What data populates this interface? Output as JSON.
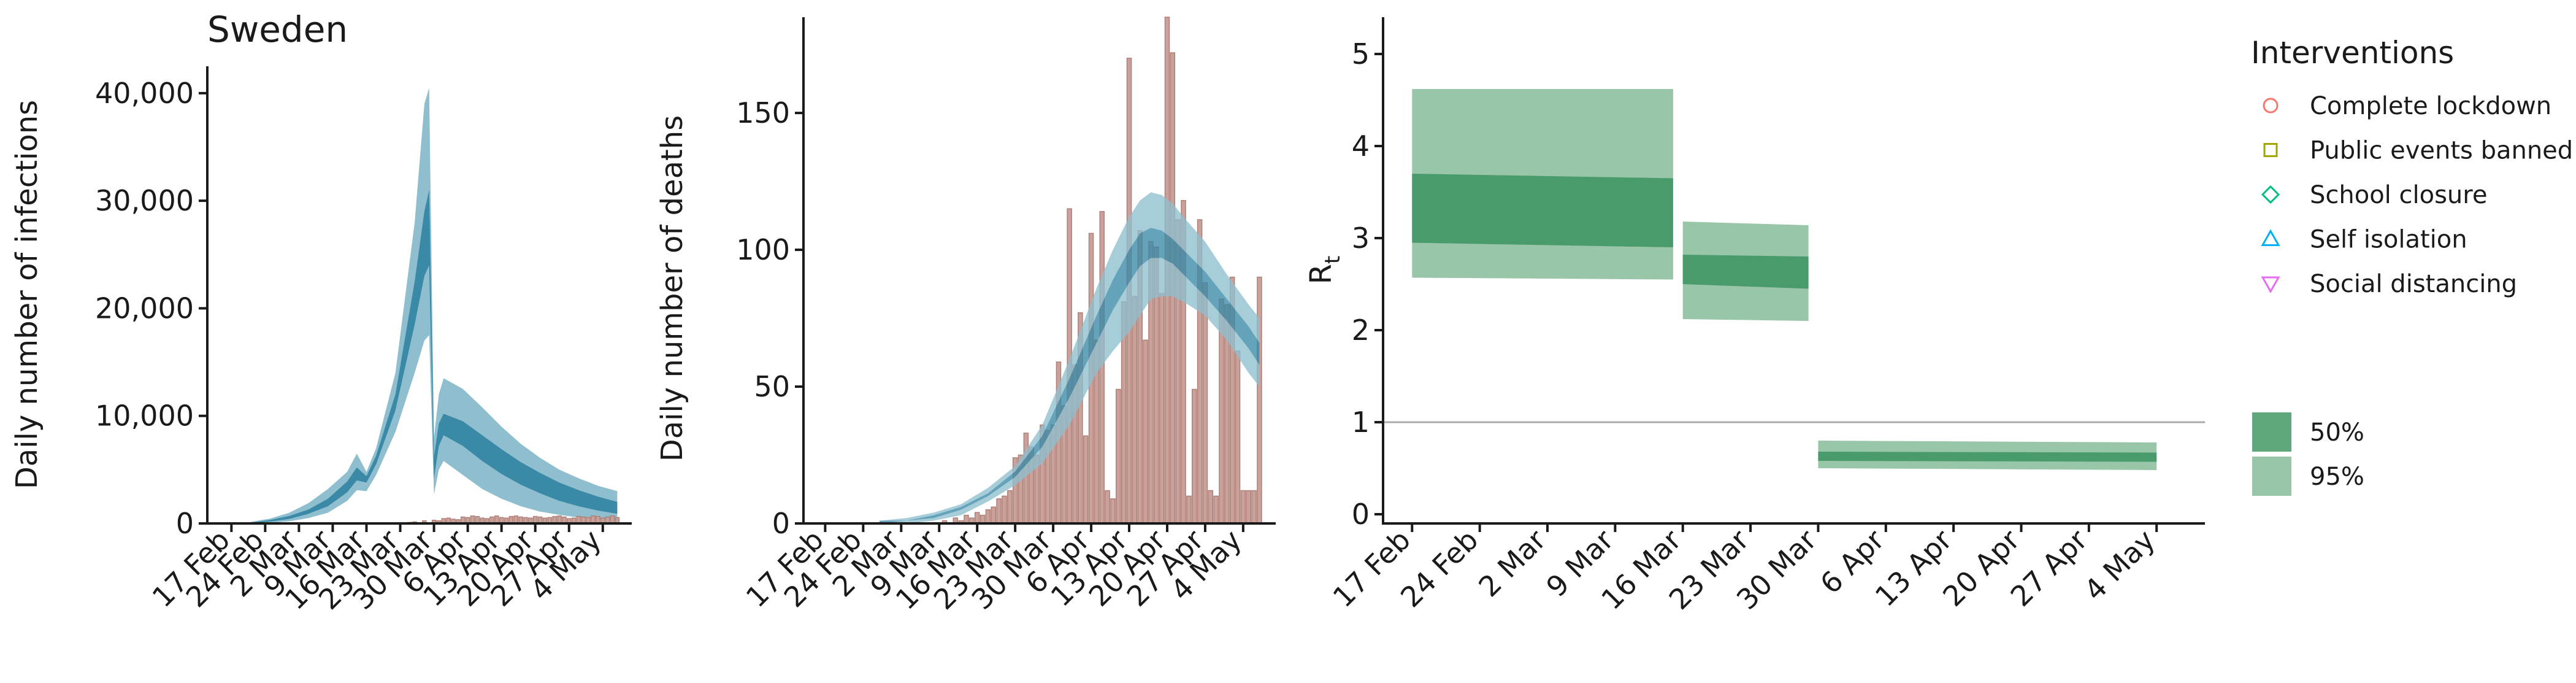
{
  "colors": {
    "band95": "#8fbfcf",
    "band50": "#3a8aa7",
    "bar_fill": "#c9a39b",
    "bar_stroke": "#b07f77",
    "rt95": "#99c5a9",
    "rt50": "#4a9b6b",
    "refline": "#aaaaaa"
  },
  "chart_data": [
    {
      "type": "area",
      "panel": "infections",
      "title": "Sweden",
      "ylabel": "Daily number of infections",
      "xlabel": "",
      "ylim": [
        0,
        42500
      ],
      "yticks": [
        0,
        10000,
        20000,
        30000,
        40000
      ],
      "ytick_labels": [
        "0",
        "10,000",
        "20,000",
        "30,000",
        "40,000"
      ],
      "xtick_labels": [
        "17 Feb",
        "24 Feb",
        "2 Mar",
        "9 Mar",
        "16 Mar",
        "23 Mar",
        "30 Mar",
        "6 Apr",
        "13 Apr",
        "20 Apr",
        "27 Apr",
        "4 May"
      ],
      "x_range_days": [
        -5,
        83
      ],
      "grid": false,
      "series_time_days": [
        4,
        8,
        12,
        16,
        20,
        24,
        26,
        28,
        30,
        34,
        38,
        40,
        41,
        42,
        43,
        44,
        48,
        52,
        56,
        60,
        64,
        68,
        72,
        76,
        80
      ],
      "band95_lower": [
        0,
        60,
        200,
        500,
        1000,
        2100,
        3100,
        3000,
        4500,
        8500,
        14000,
        17000,
        17500,
        2700,
        5000,
        5800,
        4500,
        3200,
        2300,
        1600,
        1100,
        800,
        550,
        380,
        250
      ],
      "band95_upper": [
        150,
        450,
        1000,
        1900,
        3200,
        4800,
        6500,
        4800,
        7000,
        14000,
        28000,
        39000,
        40500,
        8000,
        12000,
        13500,
        12500,
        10800,
        9000,
        7400,
        6100,
        5000,
        4200,
        3500,
        3000
      ],
      "band50_lower": [
        30,
        170,
        420,
        900,
        1600,
        2900,
        4000,
        3800,
        5500,
        10500,
        18500,
        23000,
        24000,
        4200,
        7200,
        8200,
        7200,
        5800,
        4600,
        3600,
        2800,
        2100,
        1600,
        1200,
        900
      ],
      "band50_upper": [
        80,
        320,
        700,
        1300,
        2300,
        3900,
        5200,
        4400,
        6300,
        12000,
        22500,
        29000,
        31000,
        6200,
        9300,
        10200,
        9500,
        8200,
        6900,
        5700,
        4700,
        3800,
        3100,
        2500,
        2000
      ],
      "bars_time_days": [
        37,
        38,
        40,
        42,
        43,
        44,
        45,
        46,
        47,
        48,
        49,
        50,
        51,
        52,
        53,
        54,
        55,
        56,
        57,
        58,
        59,
        60,
        61,
        62,
        63,
        64,
        65,
        66,
        67,
        68,
        69,
        70,
        71,
        72,
        73,
        74,
        75,
        76,
        77,
        78,
        79,
        80
      ],
      "bars_values": [
        100,
        150,
        250,
        300,
        250,
        450,
        500,
        400,
        350,
        600,
        550,
        700,
        650,
        500,
        450,
        600,
        700,
        550,
        500,
        650,
        700,
        600,
        550,
        500,
        650,
        600,
        500,
        550,
        650,
        700,
        600,
        450,
        500,
        650,
        600,
        550,
        700,
        650,
        500,
        600,
        700,
        550
      ]
    },
    {
      "type": "bar",
      "panel": "deaths",
      "ylabel": "Daily number of deaths",
      "xlabel": "",
      "ylim": [
        0,
        185
      ],
      "yticks": [
        0,
        50,
        100,
        150
      ],
      "ytick_labels": [
        "0",
        "50",
        "100",
        "150"
      ],
      "xtick_labels": [
        "17 Feb",
        "24 Feb",
        "2 Mar",
        "9 Mar",
        "16 Mar",
        "23 Mar",
        "30 Mar",
        "6 Apr",
        "13 Apr",
        "20 Apr",
        "27 Apr",
        "4 May"
      ],
      "x_range_days": [
        -4,
        83
      ],
      "grid": false,
      "bars_time_days": [
        22,
        24,
        25,
        26,
        27,
        28,
        29,
        30,
        31,
        32,
        33,
        34,
        35,
        36,
        37,
        38,
        39,
        40,
        41,
        42,
        43,
        44,
        45,
        46,
        47,
        48,
        49,
        50,
        51,
        52,
        53,
        54,
        55,
        56,
        57,
        58,
        59,
        60,
        61,
        62,
        63,
        64,
        65,
        66,
        67,
        68,
        69,
        70,
        71,
        72,
        73,
        74,
        75,
        76,
        77,
        78,
        79,
        80
      ],
      "bars_values": [
        1,
        2,
        1,
        3,
        2,
        4,
        3,
        5,
        6,
        9,
        10,
        12,
        24,
        25,
        33,
        28,
        25,
        36,
        34,
        36,
        59,
        43,
        115,
        58,
        77,
        32,
        106,
        67,
        114,
        12,
        9,
        49,
        81,
        170,
        83,
        107,
        67,
        103,
        101,
        84,
        185,
        172,
        111,
        118,
        10,
        49,
        111,
        88,
        12,
        10,
        82,
        80,
        90,
        63,
        12,
        12,
        12,
        90
      ],
      "series_time_days": [
        10,
        15,
        20,
        25,
        30,
        35,
        40,
        45,
        50,
        53,
        56,
        58,
        60,
        62,
        64,
        66,
        70,
        74,
        78,
        80
      ],
      "band95_lower": [
        0,
        0,
        1,
        3,
        8,
        14,
        22,
        36,
        55,
        63,
        70,
        76,
        82,
        83,
        83,
        81,
        76,
        67,
        55,
        50
      ],
      "band95_upper": [
        1,
        2,
        4,
        7,
        13,
        21,
        36,
        60,
        86,
        100,
        112,
        118,
        121,
        120,
        117,
        112,
        103,
        91,
        80,
        75
      ],
      "band50_lower": [
        0,
        1,
        2,
        5,
        10,
        17,
        28,
        46,
        66,
        78,
        88,
        94,
        97,
        97,
        95,
        91,
        83,
        74,
        64,
        58
      ],
      "band50_upper": [
        1,
        1,
        3,
        6,
        11,
        19,
        32,
        53,
        76,
        89,
        100,
        106,
        108,
        107,
        104,
        100,
        92,
        82,
        72,
        66
      ]
    },
    {
      "type": "area",
      "panel": "rt",
      "ylabel": "Rt",
      "ylabel_main": "R",
      "ylabel_sub": "t",
      "xlabel": "",
      "ylim": [
        -0.1,
        5.4
      ],
      "yticks": [
        0,
        1,
        2,
        3,
        4,
        5
      ],
      "ytick_labels": [
        "0",
        "1",
        "2",
        "3",
        "4",
        "5"
      ],
      "xtick_labels": [
        "17 Feb",
        "24 Feb",
        "2 Mar",
        "9 Mar",
        "16 Mar",
        "23 Mar",
        "30 Mar",
        "6 Apr",
        "13 Apr",
        "20 Apr",
        "27 Apr",
        "4 May"
      ],
      "x_range_days": [
        -3,
        82
      ],
      "reference_line": 1,
      "grid": false,
      "segments": [
        {
          "x_start": 0,
          "x_end": 27,
          "ci95_start": [
            2.57,
            4.62
          ],
          "ci95_end": [
            2.55,
            4.62
          ],
          "ci50_start": [
            2.95,
            3.7
          ],
          "ci50_end": [
            2.9,
            3.65
          ]
        },
        {
          "x_start": 28,
          "x_end": 41,
          "ci95_start": [
            2.12,
            3.18
          ],
          "ci95_end": [
            2.1,
            3.14
          ],
          "ci50_start": [
            2.5,
            2.82
          ],
          "ci50_end": [
            2.45,
            2.8
          ]
        },
        {
          "x_start": 42,
          "x_end": 77,
          "ci95_start": [
            0.5,
            0.8
          ],
          "ci95_end": [
            0.48,
            0.78
          ],
          "ci50_start": [
            0.58,
            0.68
          ],
          "ci50_end": [
            0.57,
            0.67
          ]
        }
      ]
    }
  ],
  "legend": {
    "title": "Interventions",
    "items": [
      {
        "label": "Complete lockdown",
        "marker": "circle",
        "color": "#f8766d"
      },
      {
        "label": "Public events banned",
        "marker": "square",
        "color": "#a3a500"
      },
      {
        "label": "School closure",
        "marker": "diamond",
        "color": "#00bf7d"
      },
      {
        "label": "Self isolation",
        "marker": "triangle-up",
        "color": "#00b0f6"
      },
      {
        "label": "Social distancing",
        "marker": "triangle-down",
        "color": "#e76bf3"
      }
    ],
    "ci_items": [
      {
        "label": "50%",
        "color": "#5ea67c"
      },
      {
        "label": "95%",
        "color": "#99c5a9"
      }
    ]
  }
}
